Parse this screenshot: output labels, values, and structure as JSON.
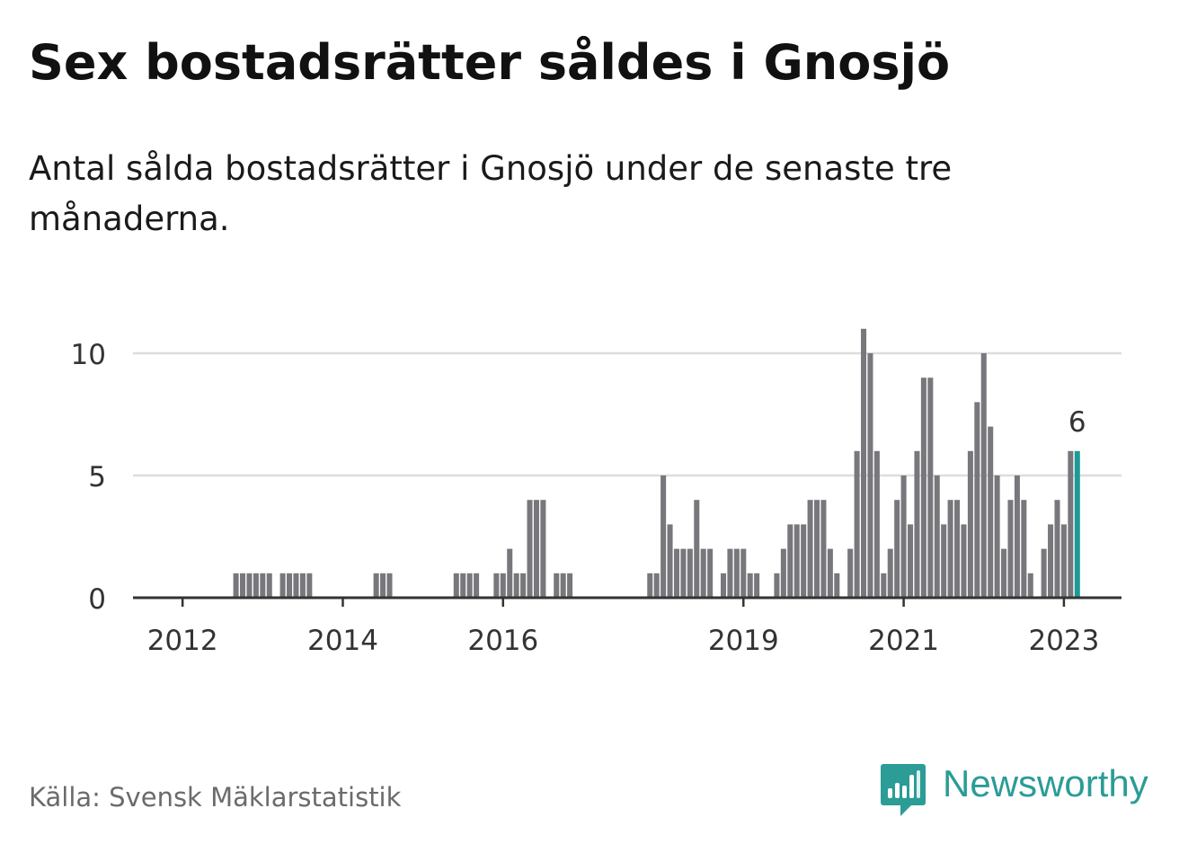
{
  "header": {
    "title": "Sex bostadsrätter såldes i Gnosjö",
    "subtitle": "Antal sålda bostadsrätter i Gnosjö under de senaste tre månaderna."
  },
  "footer": {
    "source": "Källa: Svensk Mäklarstatistik",
    "brand": "Newsworthy",
    "brand_icon": "bar-chart-speech-bubble-icon"
  },
  "colors": {
    "bar": "#78777c",
    "highlight": "#1d9a95",
    "grid": "#dddddd",
    "axis": "#333333",
    "brand": "#2b9c96"
  },
  "chart_data": {
    "type": "bar",
    "title": "Sex bostadsrätter såldes i Gnosjö",
    "xlabel": "",
    "ylabel": "",
    "ylim": [
      0,
      11
    ],
    "yticks": [
      0,
      5,
      10
    ],
    "grid": true,
    "start_period": "2011-08",
    "period": "monthly (rolling 3-month count)",
    "xtick_labels": [
      {
        "label": "2012",
        "index": 5
      },
      {
        "label": "2014",
        "index": 29
      },
      {
        "label": "2016",
        "index": 53
      },
      {
        "label": "2019",
        "index": 89
      },
      {
        "label": "2021",
        "index": 113
      },
      {
        "label": "2023",
        "index": 137
      }
    ],
    "values": [
      0,
      0,
      0,
      0,
      0,
      0,
      0,
      0,
      0,
      0,
      0,
      0,
      0,
      1,
      1,
      1,
      1,
      1,
      1,
      0,
      1,
      1,
      1,
      1,
      1,
      0,
      0,
      0,
      0,
      0,
      0,
      0,
      0,
      0,
      1,
      1,
      1,
      0,
      0,
      0,
      0,
      0,
      0,
      0,
      0,
      0,
      1,
      1,
      1,
      1,
      0,
      0,
      1,
      1,
      2,
      1,
      1,
      4,
      4,
      4,
      0,
      1,
      1,
      1,
      0,
      0,
      0,
      0,
      0,
      0,
      0,
      0,
      0,
      0,
      0,
      1,
      1,
      5,
      3,
      2,
      2,
      2,
      4,
      2,
      2,
      0,
      1,
      2,
      2,
      2,
      1,
      1,
      0,
      0,
      1,
      2,
      3,
      3,
      3,
      4,
      4,
      4,
      2,
      1,
      0,
      2,
      6,
      11,
      10,
      6,
      1,
      2,
      4,
      5,
      3,
      6,
      9,
      9,
      5,
      3,
      4,
      4,
      3,
      6,
      8,
      10,
      7,
      5,
      2,
      4,
      5,
      4,
      1,
      0,
      2,
      3,
      4,
      3,
      6,
      6
    ],
    "highlight_index": 139,
    "highlight_label": "6"
  }
}
